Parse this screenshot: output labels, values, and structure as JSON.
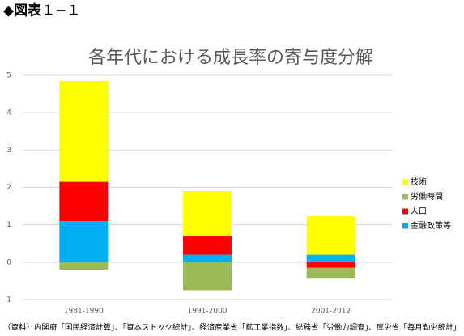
{
  "header": "◆図表１−１",
  "source": "（資料）内閣府「国民経済計算」、「資本ストック統計」、経済産業省「鉱工業指数」、総務省「労働力調査」、厚労省「毎月勤労統計」",
  "chart_data": {
    "type": "stacked-bar",
    "title": "各年代における成長率の寄与度分解",
    "categories": [
      "1981-1990",
      "1991-2000",
      "2001-2012"
    ],
    "series": [
      {
        "name": "技術",
        "color": "#ffff00",
        "values": [
          2.7,
          1.2,
          1.03
        ]
      },
      {
        "name": "労働時間",
        "color": "#9bbb59",
        "values": [
          -0.2,
          -0.75,
          -0.27
        ]
      },
      {
        "name": "人口",
        "color": "#ff0000",
        "values": [
          1.05,
          0.5,
          -0.15
        ]
      },
      {
        "name": "金融政策等",
        "color": "#00b0f0",
        "values": [
          1.1,
          0.2,
          0.2
        ]
      }
    ],
    "ylim": [
      -1,
      5
    ],
    "yticks": [
      -1,
      0,
      1,
      2,
      3,
      4,
      5
    ],
    "grid": true,
    "legend": "right"
  }
}
